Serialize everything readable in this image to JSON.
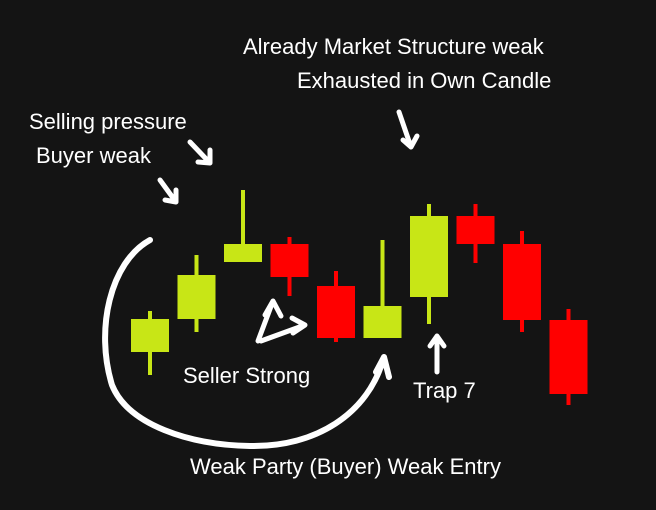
{
  "chart_data": {
    "type": "candlestick",
    "colors": {
      "background": "#141414",
      "bullish": "#c8e616",
      "bearish": "#ff0000",
      "annotation": "#ffffff"
    },
    "candles": [
      {
        "direction": "bullish",
        "high": 3.2,
        "open": 1.15,
        "close": 2.8,
        "low": 0.0
      },
      {
        "direction": "bullish",
        "high": 6.0,
        "open": 2.8,
        "close": 5.0,
        "low": 2.15
      },
      {
        "direction": "bullish",
        "high": 9.25,
        "open": 5.65,
        "close": 6.55,
        "low": 5.65
      },
      {
        "direction": "bearish",
        "high": 6.9,
        "open": 6.55,
        "close": 4.9,
        "low": 3.95
      },
      {
        "direction": "bearish",
        "high": 5.2,
        "open": 4.45,
        "close": 1.85,
        "low": 1.65
      },
      {
        "direction": "bullish",
        "high": 6.75,
        "open": 1.85,
        "close": 3.45,
        "low": 1.85
      },
      {
        "direction": "bullish",
        "high": 8.55,
        "open": 3.9,
        "close": 7.95,
        "low": 2.55
      },
      {
        "direction": "bearish",
        "high": 8.55,
        "open": 7.95,
        "close": 6.55,
        "low": 5.6
      },
      {
        "direction": "bearish",
        "high": 7.2,
        "open": 6.55,
        "close": 2.75,
        "low": 2.15
      },
      {
        "direction": "bearish",
        "high": 3.3,
        "open": 2.75,
        "close": -0.95,
        "low": -1.5
      }
    ],
    "annotations": {
      "selling_pressure": "Selling pressure",
      "buyer_weak": "Buyer weak",
      "market_structure": "Already Market Structure weak",
      "exhausted": "Exhausted in Own Candle",
      "seller_strong": "Seller Strong",
      "trap": "Trap 7",
      "weak_entry": "Weak Party (Buyer) Weak Entry"
    }
  }
}
